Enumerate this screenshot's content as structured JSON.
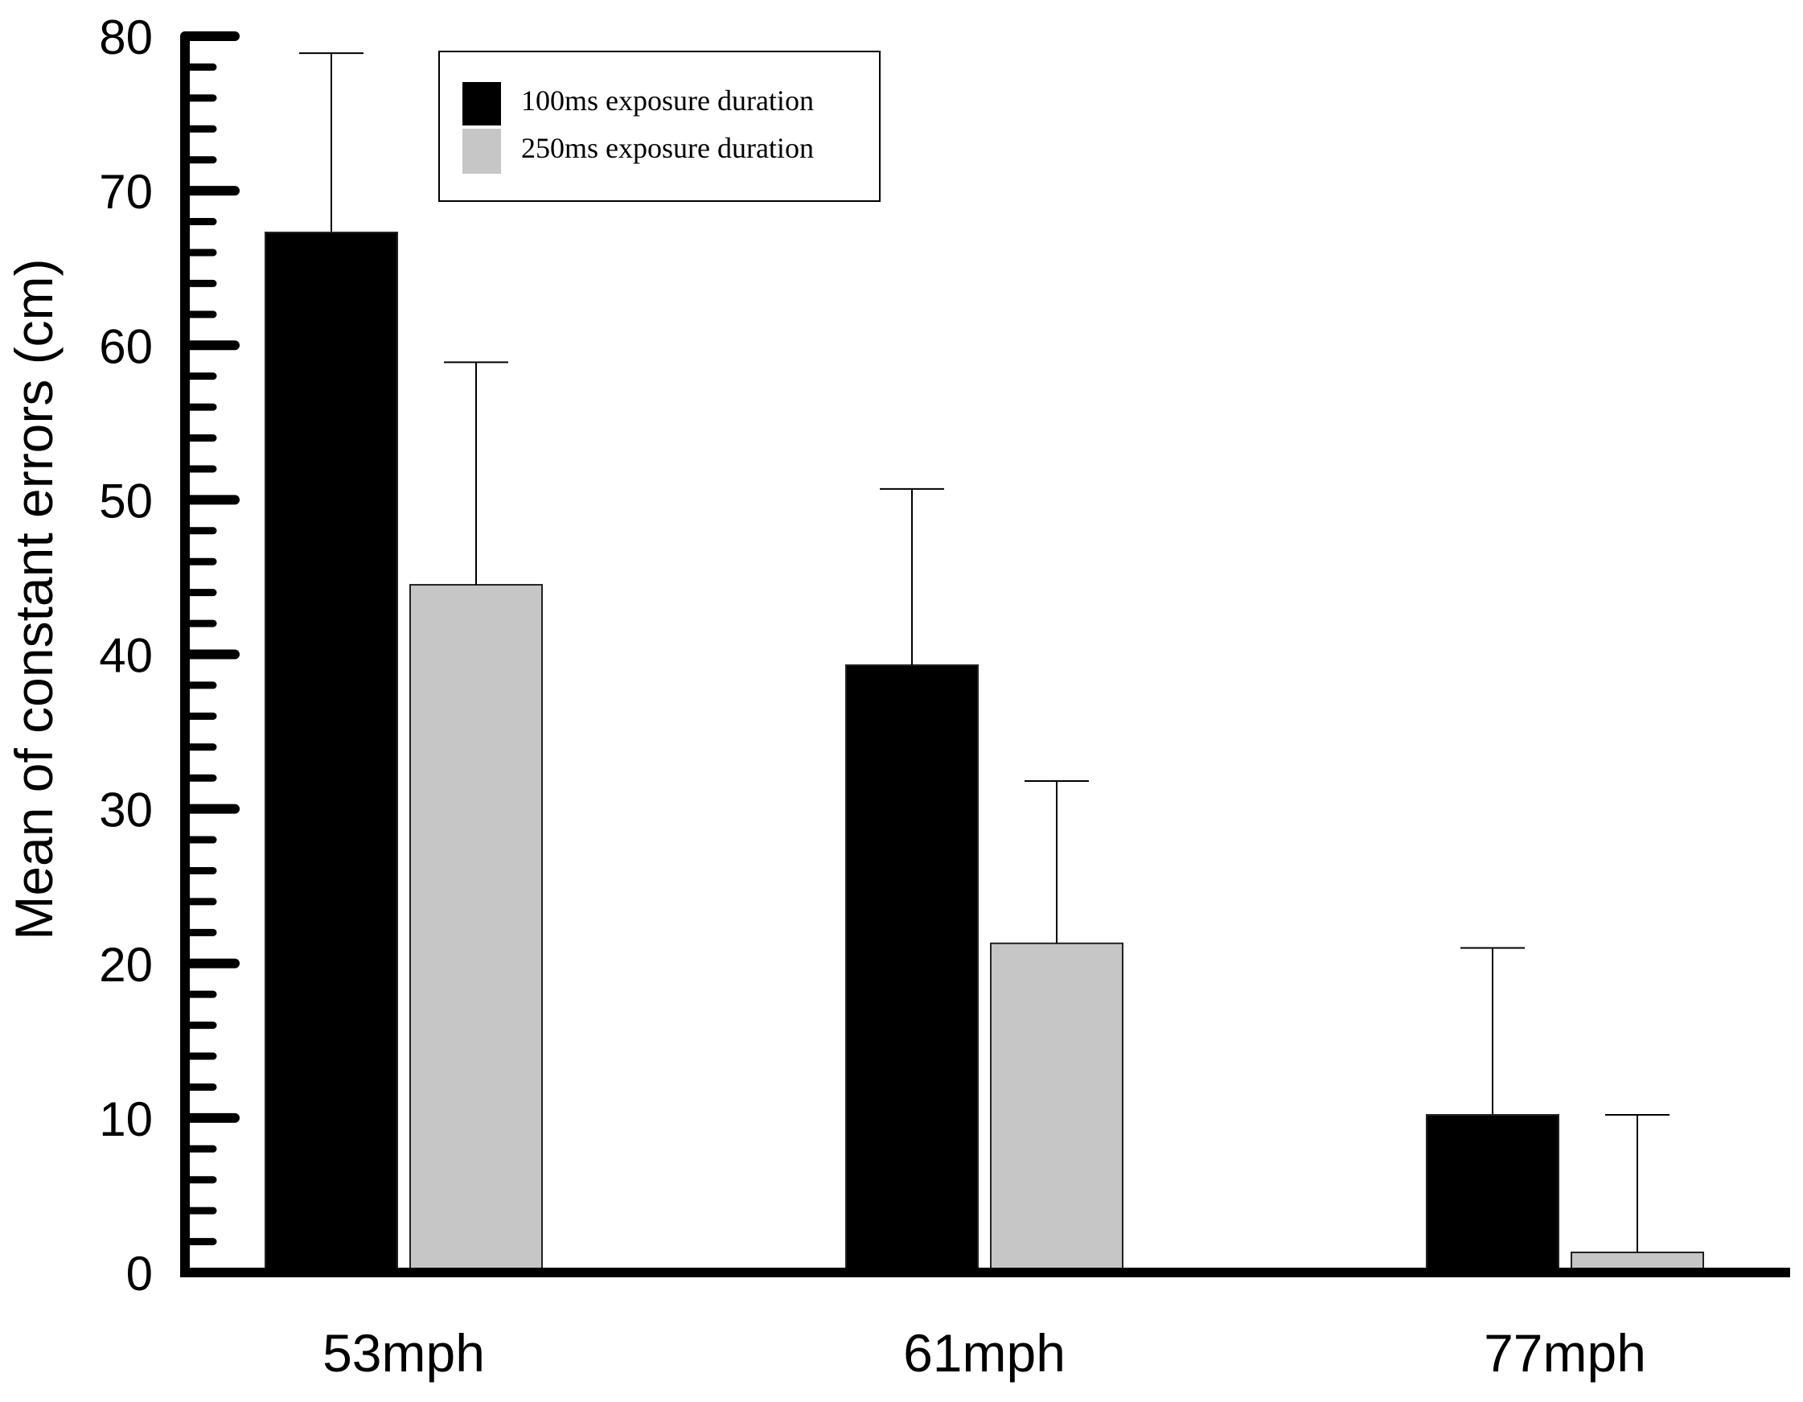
{
  "chart_data": {
    "type": "bar",
    "title": "",
    "xlabel": "",
    "ylabel": "Mean of constant errors (cm)",
    "ylim": [
      0,
      80
    ],
    "yticks": [
      "0",
      "10",
      "20",
      "30",
      "40",
      "50",
      "60",
      "70",
      "80"
    ],
    "categories": [
      "53mph",
      "61mph",
      "77mph"
    ],
    "legend_position": "top-left",
    "grid": false,
    "series": [
      {
        "name": "100ms exposure duration",
        "color": "#000000",
        "values": [
          67.3,
          39.3,
          10.2
        ],
        "error_upper": [
          11.6,
          11.4,
          10.8
        ]
      },
      {
        "name": "250ms exposure duration",
        "color": "#c6c6c6",
        "values": [
          44.5,
          21.3,
          1.3
        ],
        "error_upper": [
          14.4,
          10.5,
          8.9
        ]
      }
    ]
  }
}
